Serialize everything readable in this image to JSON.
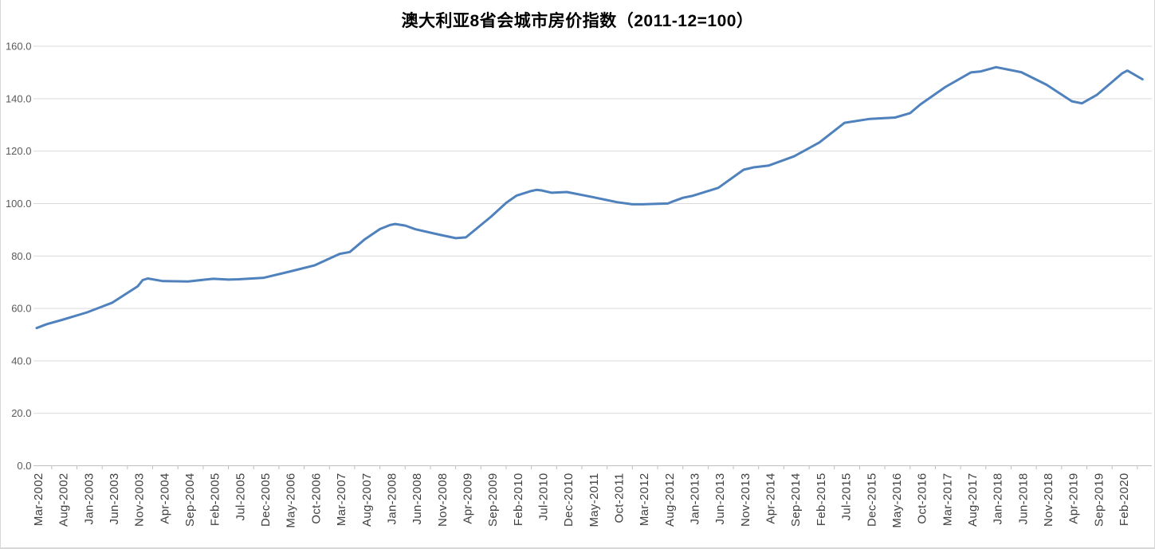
{
  "chart_data": {
    "type": "line",
    "title": "澳大利亚8省会城市房价指数（2011-12=100）",
    "grid": true,
    "legend": false,
    "x_axis": {
      "tick_labels": [
        "Mar-2002",
        "Aug-2002",
        "Jan-2003",
        "Jun-2003",
        "Nov-2003",
        "Apr-2004",
        "Sep-2004",
        "Feb-2005",
        "Jul-2005",
        "Dec-2005",
        "May-2006",
        "Oct-2006",
        "Mar-2007",
        "Aug-2007",
        "Jan-2008",
        "Jun-2008",
        "Nov-2008",
        "Apr-2009",
        "Sep-2009",
        "Feb-2010",
        "Jul-2010",
        "Dec-2010",
        "May-2011",
        "Oct-2011",
        "Mar-2012",
        "Aug-2012",
        "Jan-2013",
        "Jun-2013",
        "Nov-2013",
        "Apr-2014",
        "Sep-2014",
        "Feb-2015",
        "Jul-2015",
        "Dec-2015",
        "May-2016",
        "Oct-2016",
        "Mar-2017",
        "Aug-2017",
        "Jan-2018",
        "Jun-2018",
        "Nov-2018",
        "Apr-2019",
        "Sep-2019",
        "Feb-2020"
      ],
      "months_per_label": 5,
      "label_rotation_deg": 90
    },
    "y_axis": {
      "tick_labels": [
        "0.0",
        "20.0",
        "40.0",
        "60.0",
        "80.0",
        "100.0",
        "120.0",
        "140.0",
        "160.0"
      ],
      "min": 0,
      "max": 160,
      "step": 20
    },
    "series": [
      {
        "color": "#4F81BD",
        "points_month_value": [
          [
            0,
            52.5
          ],
          [
            2,
            54.0
          ],
          [
            5,
            55.6
          ],
          [
            10,
            58.5
          ],
          [
            15,
            62.2
          ],
          [
            20,
            68.4
          ],
          [
            21,
            70.8
          ],
          [
            22,
            71.4
          ],
          [
            25,
            70.4
          ],
          [
            30,
            70.3
          ],
          [
            34,
            71.1
          ],
          [
            35,
            71.3
          ],
          [
            38,
            71.0
          ],
          [
            40,
            71.1
          ],
          [
            45,
            71.7
          ],
          [
            50,
            74.0
          ],
          [
            55,
            76.4
          ],
          [
            60,
            80.8
          ],
          [
            62,
            81.5
          ],
          [
            65,
            86.4
          ],
          [
            68,
            90.3
          ],
          [
            70,
            91.8
          ],
          [
            71,
            92.2
          ],
          [
            73,
            91.6
          ],
          [
            75,
            90.2
          ],
          [
            80,
            88.0
          ],
          [
            83,
            86.8
          ],
          [
            85,
            87.1
          ],
          [
            90,
            95.0
          ],
          [
            93,
            100.3
          ],
          [
            95,
            103.0
          ],
          [
            98,
            104.8
          ],
          [
            99,
            105.2
          ],
          [
            100,
            105.0
          ],
          [
            102,
            104.1
          ],
          [
            105,
            104.4
          ],
          [
            110,
            102.5
          ],
          [
            115,
            100.5
          ],
          [
            118,
            99.7
          ],
          [
            120,
            99.7
          ],
          [
            123,
            99.9
          ],
          [
            125,
            100.0
          ],
          [
            126,
            100.8
          ],
          [
            128,
            102.2
          ],
          [
            130,
            103.0
          ],
          [
            135,
            106.0
          ],
          [
            140,
            112.9
          ],
          [
            142,
            113.8
          ],
          [
            145,
            114.5
          ],
          [
            150,
            118.0
          ],
          [
            155,
            123.3
          ],
          [
            160,
            130.8
          ],
          [
            165,
            132.3
          ],
          [
            170,
            132.8
          ],
          [
            173,
            134.5
          ],
          [
            175,
            137.8
          ],
          [
            180,
            144.5
          ],
          [
            185,
            150.0
          ],
          [
            187,
            150.4
          ],
          [
            190,
            152.0
          ],
          [
            195,
            150.1
          ],
          [
            200,
            145.3
          ],
          [
            205,
            139.0
          ],
          [
            207,
            138.2
          ],
          [
            210,
            141.5
          ],
          [
            215,
            149.7
          ],
          [
            216,
            150.7
          ],
          [
            219,
            147.4
          ]
        ]
      }
    ],
    "colors": {
      "line": "#4F81BD",
      "gridline": "#D9D9D9",
      "axis": "#BFBFBF",
      "y_tick_text": "#595959",
      "x_tick_text": "#404040",
      "title_text": "#000000",
      "border": "#D8D8D8"
    }
  }
}
